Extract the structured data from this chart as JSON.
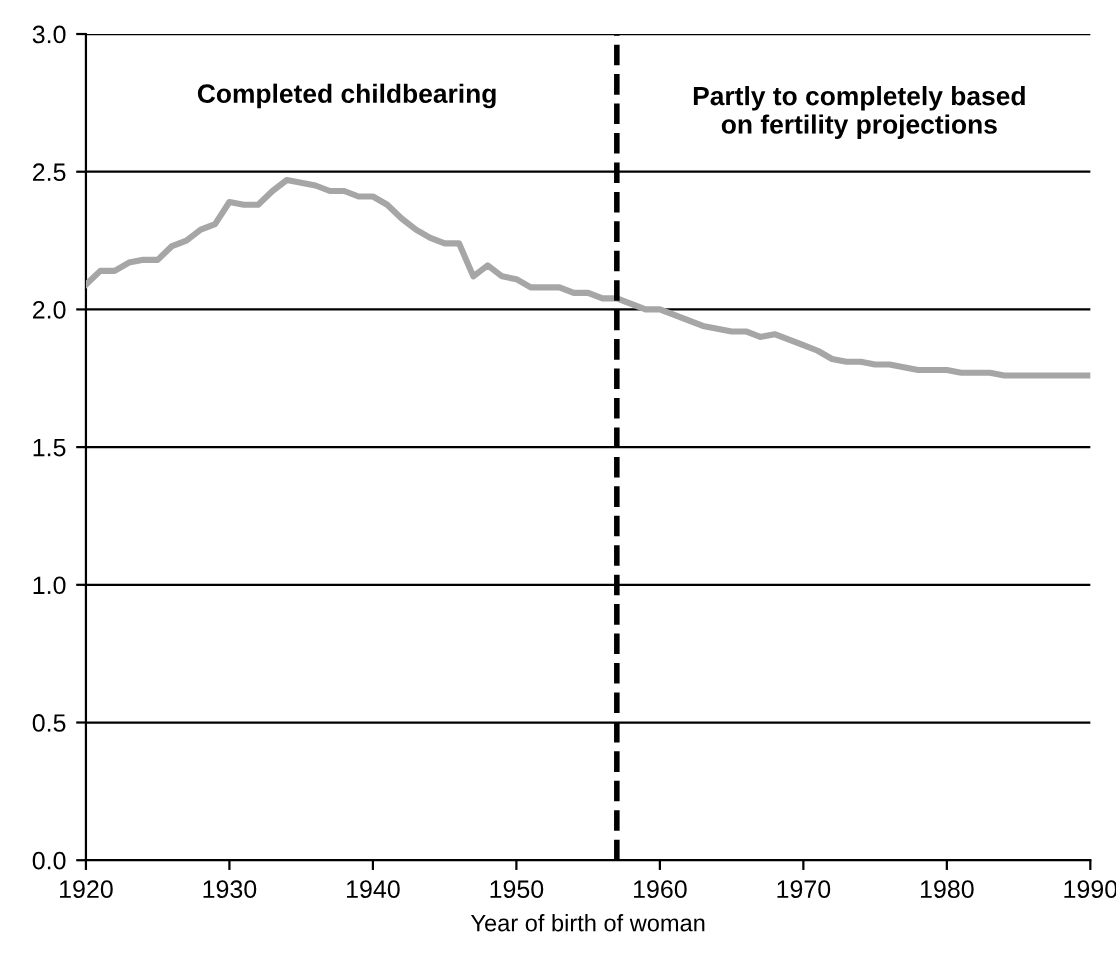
{
  "chart_data": {
    "type": "line",
    "xlabel": "Year of birth of woman",
    "x": [
      1920,
      1921,
      1922,
      1923,
      1924,
      1925,
      1926,
      1927,
      1928,
      1929,
      1930,
      1931,
      1932,
      1933,
      1934,
      1935,
      1936,
      1937,
      1938,
      1939,
      1940,
      1941,
      1942,
      1943,
      1944,
      1945,
      1946,
      1947,
      1948,
      1949,
      1950,
      1951,
      1952,
      1953,
      1954,
      1955,
      1956,
      1957,
      1958,
      1959,
      1960,
      1961,
      1962,
      1963,
      1964,
      1965,
      1966,
      1967,
      1968,
      1969,
      1970,
      1971,
      1972,
      1973,
      1974,
      1975,
      1976,
      1977,
      1978,
      1979,
      1980,
      1981,
      1982,
      1983,
      1984,
      1985,
      1986,
      1987,
      1988,
      1989,
      1990
    ],
    "series": [
      {
        "color": "#a6a6a6",
        "values": [
          2.09,
          2.14,
          2.14,
          2.17,
          2.18,
          2.18,
          2.23,
          2.25,
          2.29,
          2.31,
          2.39,
          2.38,
          2.38,
          2.43,
          2.47,
          2.46,
          2.45,
          2.43,
          2.43,
          2.41,
          2.41,
          2.38,
          2.33,
          2.29,
          2.26,
          2.24,
          2.24,
          2.12,
          2.16,
          2.12,
          2.11,
          2.08,
          2.08,
          2.08,
          2.06,
          2.06,
          2.04,
          2.04,
          2.02,
          2.0,
          2.0,
          1.98,
          1.96,
          1.94,
          1.93,
          1.92,
          1.92,
          1.9,
          1.91,
          1.89,
          1.87,
          1.85,
          1.82,
          1.81,
          1.81,
          1.8,
          1.8,
          1.79,
          1.78,
          1.78,
          1.78,
          1.77,
          1.77,
          1.77,
          1.76,
          1.76,
          1.76,
          1.76,
          1.76,
          1.76,
          1.76
        ]
      }
    ],
    "xlim": [
      1920,
      1990
    ],
    "xticks": [
      1920,
      1930,
      1940,
      1950,
      1960,
      1970,
      1980,
      1990
    ],
    "ylim": [
      0,
      3
    ],
    "yticks": [
      {
        "value": 0,
        "label": "0.0"
      },
      {
        "value": 0.5,
        "label": "0.5"
      },
      {
        "value": 1,
        "label": "1.0"
      },
      {
        "value": 1.5,
        "label": "1.5"
      },
      {
        "value": 2,
        "label": "2.0"
      },
      {
        "value": 2.5,
        "label": "2.5"
      },
      {
        "value": 3,
        "label": "3.0"
      }
    ],
    "grid": "y",
    "marker": "none",
    "line_style": "solid",
    "legend": false,
    "ref_lines": [
      {
        "axis": "x",
        "value": 1957,
        "color": "#000000",
        "line_style": "dashed"
      }
    ],
    "annotations": [
      "Completed childbearing",
      "Partly to completely based\non fertility projections"
    ]
  }
}
